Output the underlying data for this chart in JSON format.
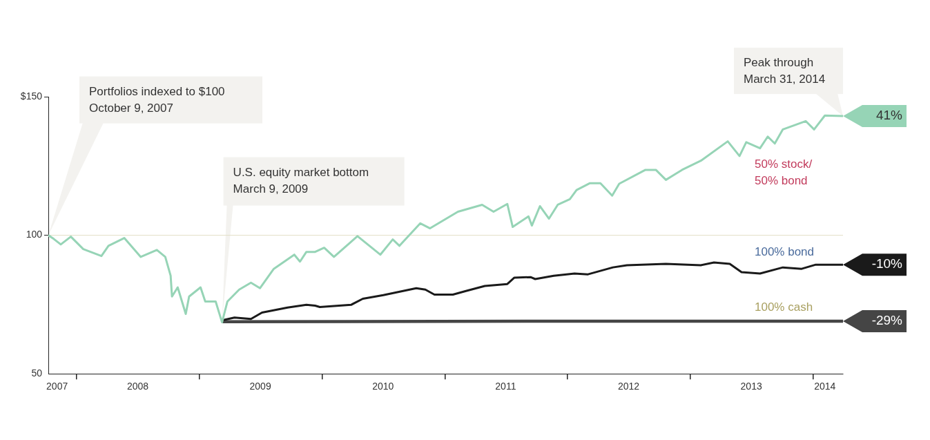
{
  "chart_data": {
    "type": "line",
    "marker": "none",
    "line_style": "solid",
    "xlim": [
      "2007-10-09",
      "2014-03-31"
    ],
    "xticks": [
      {
        "value": "2007-11-04",
        "label": "2007"
      },
      {
        "value": "2008-01-01",
        "label": null
      },
      {
        "value": "2008-07-01",
        "label": "2008"
      },
      {
        "value": "2009-01-01",
        "label": null
      },
      {
        "value": "2009-07-01",
        "label": "2009"
      },
      {
        "value": "2010-01-01",
        "label": null
      },
      {
        "value": "2010-07-01",
        "label": "2010"
      },
      {
        "value": "2011-01-01",
        "label": null
      },
      {
        "value": "2011-07-01",
        "label": "2011"
      },
      {
        "value": "2012-01-01",
        "label": null
      },
      {
        "value": "2012-07-01",
        "label": "2012"
      },
      {
        "value": "2013-01-01",
        "label": null
      },
      {
        "value": "2013-07-01",
        "label": "2013"
      },
      {
        "value": "2014-01-01",
        "label": null
      },
      {
        "value": "2014-02-05",
        "label": "2014"
      }
    ],
    "ylim": [
      50,
      150
    ],
    "yticks": [
      50,
      100,
      {
        "value": 150,
        "label": "$150"
      }
    ],
    "series": [
      {
        "name": "50% stock/\n50% bond",
        "color": "#96d4b6",
        "x": [
          "2007-10-09",
          "2007-10-25",
          "2007-11-15",
          "2007-12-15",
          "2008-01-21",
          "2008-03-15",
          "2008-04-05",
          "2008-05-22",
          "2008-07-10",
          "2008-08-27",
          "2008-09-21",
          "2008-10-07",
          "2008-10-11",
          "2008-10-28",
          "2008-11-21",
          "2008-12-01",
          "2009-01-04",
          "2009-01-18",
          "2009-02-18",
          "2009-03-09",
          "2009-03-25",
          "2009-04-29",
          "2009-06-03",
          "2009-06-30",
          "2009-08-10",
          "2009-10-10",
          "2009-10-27",
          "2009-11-15",
          "2009-12-11",
          "2010-01-07",
          "2010-02-05",
          "2010-04-16",
          "2010-06-23",
          "2010-07-30",
          "2010-08-19",
          "2010-10-20",
          "2010-11-18",
          "2011-02-09",
          "2011-04-22",
          "2011-05-26",
          "2011-07-06",
          "2011-07-22",
          "2011-09-07",
          "2011-09-17",
          "2011-10-11",
          "2011-11-07",
          "2011-12-03",
          "2012-01-08",
          "2012-01-28",
          "2012-03-08",
          "2012-04-08",
          "2012-05-13",
          "2012-06-03",
          "2012-08-20",
          "2012-09-20",
          "2012-10-20",
          "2012-12-07",
          "2013-02-01",
          "2013-04-22",
          "2013-05-27",
          "2013-06-16",
          "2013-07-27",
          "2013-08-19",
          "2013-09-09",
          "2013-10-03",
          "2013-12-10",
          "2014-01-04",
          "2014-02-05",
          "2014-03-31"
        ],
        "values": [
          100,
          98.7,
          96.7,
          99.5,
          95,
          92.5,
          96.2,
          99,
          92.2,
          94.7,
          92.2,
          85.4,
          77.9,
          81.2,
          71.6,
          77.9,
          81.2,
          76.1,
          76.1,
          68.6,
          76.1,
          80.4,
          82.9,
          80.9,
          87.9,
          93,
          90.5,
          94,
          94,
          95.5,
          92.2,
          99.7,
          93,
          98.5,
          96.2,
          104.3,
          102.5,
          108.5,
          111,
          108.5,
          111.3,
          103,
          106.8,
          103.5,
          110.5,
          106,
          111,
          113,
          116.3,
          118.8,
          118.8,
          114.3,
          118.6,
          123.6,
          123.6,
          120,
          123.6,
          126.9,
          133.9,
          128.6,
          133.6,
          131.4,
          135.6,
          133.1,
          138.2,
          141.2,
          138.2,
          143.2,
          143
        ]
      },
      {
        "name": "100% bond",
        "color": "#1a1a1a",
        "x": [
          "2009-03-09",
          "2009-04-15",
          "2009-06-03",
          "2009-07-06",
          "2009-09-20",
          "2009-11-15",
          "2009-12-11",
          "2009-12-25",
          "2010-03-28",
          "2010-05-02",
          "2010-07-02",
          "2010-10-08",
          "2010-11-04",
          "2010-12-01",
          "2011-01-25",
          "2011-03-05",
          "2011-04-30",
          "2011-07-06",
          "2011-07-27",
          "2011-09-13",
          "2011-09-27",
          "2011-11-21",
          "2012-01-22",
          "2012-03-02",
          "2012-05-15",
          "2012-06-26",
          "2012-10-20",
          "2013-02-01",
          "2013-03-12",
          "2013-04-28",
          "2013-06-02",
          "2013-07-27",
          "2013-10-03",
          "2013-11-28",
          "2014-01-09",
          "2014-03-31"
        ],
        "values": [
          69.3,
          70.3,
          69.8,
          72.1,
          73.9,
          74.9,
          74.6,
          74.1,
          74.9,
          77.1,
          78.4,
          80.9,
          80.4,
          78.6,
          78.6,
          79.9,
          81.7,
          82.4,
          84.7,
          84.9,
          84.2,
          85.4,
          86.2,
          85.9,
          88.4,
          89.2,
          89.7,
          89.2,
          90.2,
          89.7,
          86.7,
          86.2,
          88.4,
          87.9,
          89.4,
          89.4
        ]
      },
      {
        "name": "100% cash",
        "color": "#454545",
        "x": [
          "2009-03-09",
          "2011-09-01",
          "2014-03-31"
        ],
        "values": [
          68.8,
          69,
          69
        ]
      }
    ],
    "ref_lines": [
      {
        "axis": "y",
        "value": 100,
        "color": "#e2dfc6"
      }
    ],
    "annotations": [
      {
        "text": "Portfolios indexed to $100\nOctober 9, 2007",
        "x": "2007-10-09",
        "y": 100
      },
      {
        "text": "U.S. equity market bottom\nMarch 9, 2009",
        "x": "2009-03-09",
        "y": 68.6
      },
      "Peak through\nMarch 31, 2014",
      {
        "text": "41%",
        "x": "2014-03-31",
        "y": 143
      },
      {
        "text": "-10%",
        "x": "2014-03-31",
        "y": 89.4
      },
      {
        "text": "-29%",
        "x": "2014-03-31",
        "y": 69
      }
    ]
  }
}
